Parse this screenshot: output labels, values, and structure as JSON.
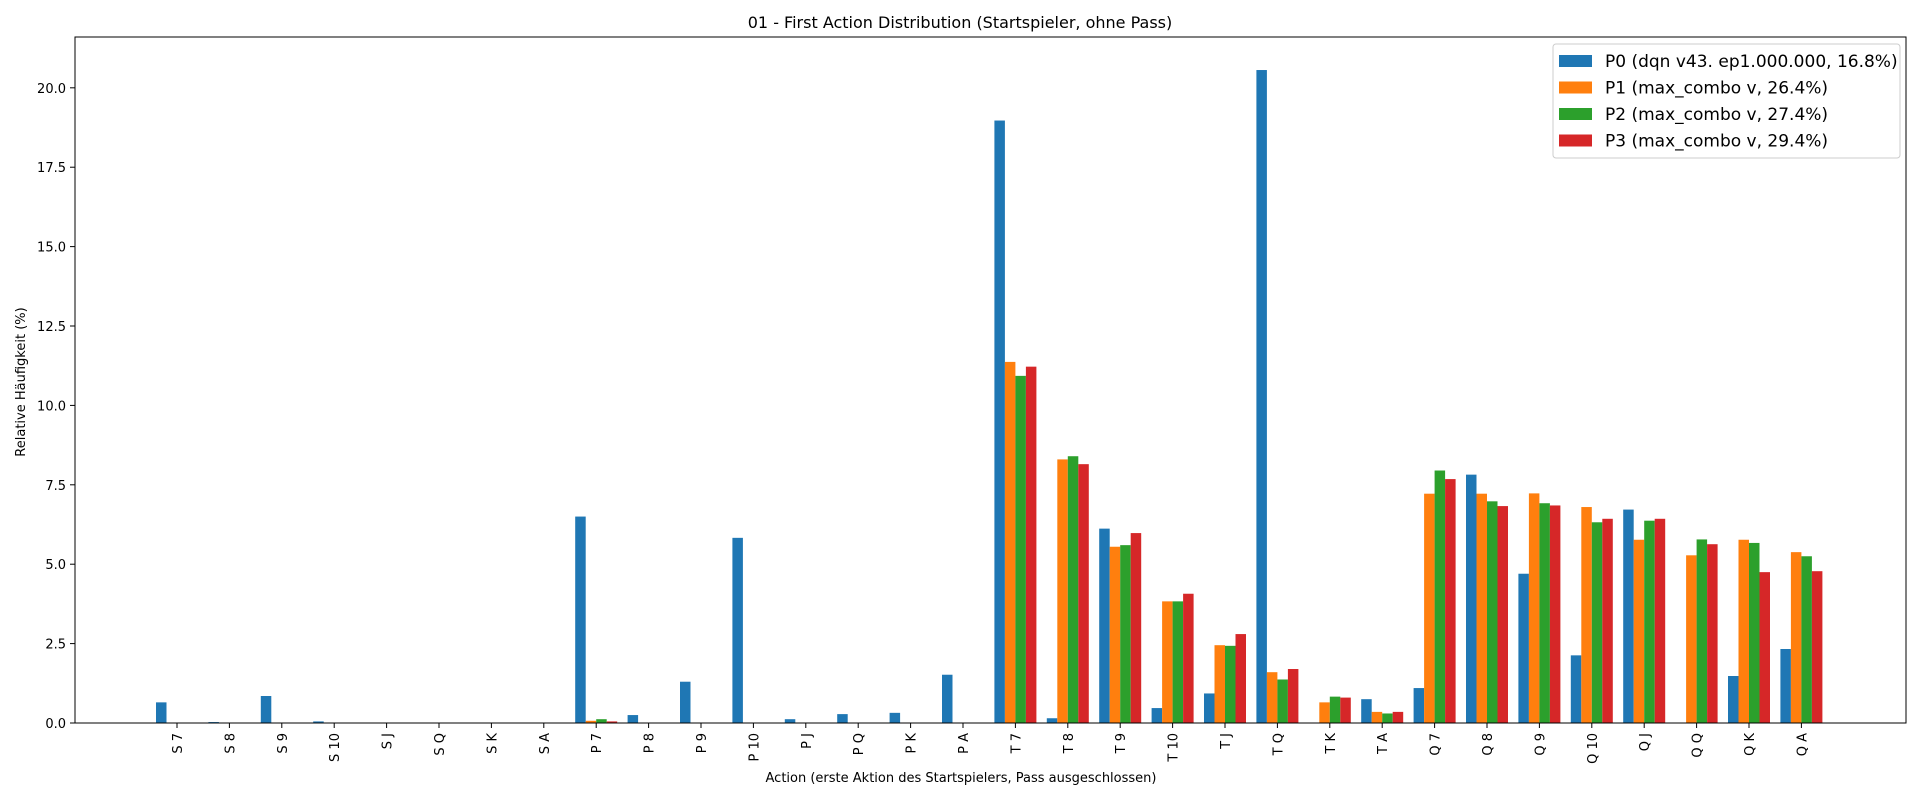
{
  "chart_data": {
    "type": "bar",
    "title": "01 - First Action Distribution (Startspieler, ohne Pass)",
    "xlabel": "Action (erste Aktion des Startspielers, Pass ausgeschlossen)",
    "ylabel": "Relative Häufigkeit (%)",
    "ylim": [
      0,
      21.6
    ],
    "yticks": [
      "0.0",
      "2.5",
      "5.0",
      "7.5",
      "10.0",
      "12.5",
      "15.0",
      "17.5",
      "20.0"
    ],
    "grid": false,
    "legend_position": "top-right",
    "categories": [
      "S 7",
      "S 8",
      "S 9",
      "S 10",
      "S J",
      "S Q",
      "S K",
      "S A",
      "P 7",
      "P 8",
      "P 9",
      "P 10",
      "P J",
      "P Q",
      "P K",
      "P A",
      "T 7",
      "T 8",
      "T 9",
      "T 10",
      "T J",
      "T Q",
      "T K",
      "T A",
      "Q 7",
      "Q 8",
      "Q 9",
      "Q 10",
      "Q J",
      "Q Q",
      "Q K",
      "Q A"
    ],
    "series": [
      {
        "name": "P0 (dqn v43. ep1.000.000, 16.8%)",
        "color": "#1f77b4",
        "values": [
          0.65,
          0.03,
          0.85,
          0.05,
          0,
          0,
          0,
          0,
          6.5,
          0.25,
          1.3,
          5.83,
          0.12,
          0.28,
          0.32,
          1.52,
          18.97,
          0.15,
          6.12,
          0.47,
          0.93,
          20.56,
          0,
          0.75,
          1.1,
          7.82,
          4.7,
          2.13,
          6.72,
          0,
          1.48,
          2.33
        ]
      },
      {
        "name": "P1 (max_combo v, 26.4%)",
        "color": "#ff7f0e",
        "values": [
          0,
          0,
          0,
          0,
          0,
          0,
          0,
          0,
          0.07,
          0,
          0,
          0,
          0,
          0,
          0,
          0,
          11.37,
          8.3,
          5.55,
          3.83,
          2.45,
          1.6,
          0.65,
          0.35,
          7.22,
          7.22,
          7.23,
          6.8,
          5.77,
          5.28,
          5.77,
          5.38
        ]
      },
      {
        "name": "P2 (max_combo v, 27.4%)",
        "color": "#2ca02c",
        "values": [
          0,
          0,
          0,
          0,
          0,
          0,
          0,
          0,
          0.12,
          0,
          0,
          0,
          0,
          0,
          0,
          0,
          10.93,
          8.4,
          5.6,
          3.83,
          2.43,
          1.37,
          0.83,
          0.3,
          7.95,
          6.98,
          6.92,
          6.32,
          6.37,
          5.78,
          5.67,
          5.25
        ]
      },
      {
        "name": "P3 (max_combo v, 29.4%)",
        "color": "#d62728",
        "values": [
          0,
          0,
          0,
          0,
          0,
          0,
          0,
          0,
          0.05,
          0,
          0,
          0,
          0,
          0,
          0,
          0,
          11.22,
          8.15,
          5.98,
          4.07,
          2.8,
          1.7,
          0.8,
          0.35,
          7.68,
          6.83,
          6.85,
          6.43,
          6.43,
          5.63,
          4.75,
          4.78
        ]
      }
    ]
  }
}
